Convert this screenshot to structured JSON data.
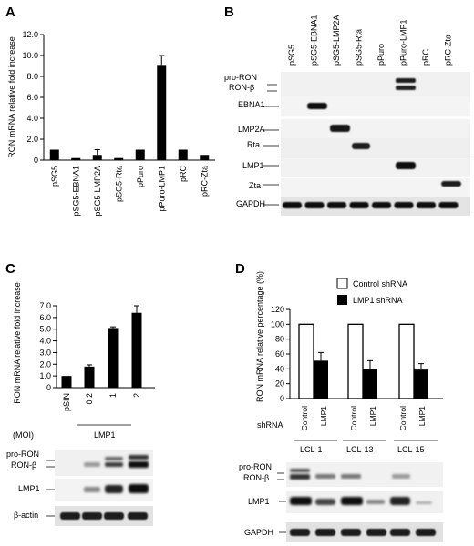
{
  "panels": {
    "A": {
      "label": "A"
    },
    "B": {
      "label": "B",
      "lanes": [
        "pSG5",
        "pSG5-EBNA1",
        "pSG5-LMP2A",
        "pSG5-Rta",
        "pPuro",
        "pPuro-LMP1",
        "pRC",
        "pRC-Zta"
      ],
      "rows": [
        "pro-RON",
        "RON-β",
        "EBNA1",
        "LMP2A",
        "Rta",
        "LMP1",
        "Zta",
        "GAPDH"
      ]
    },
    "C": {
      "label": "C",
      "moi_label": "(MOI)",
      "group_label": "LMP1",
      "rows": [
        "pro-RON",
        "RON-β",
        "LMP1",
        "β-actin"
      ]
    },
    "D": {
      "label": "D",
      "shrna_label": "shRNA",
      "legend": [
        "Control shRNA",
        "LMP1 shRNA"
      ],
      "lane_labels": [
        "Control",
        "LMP1",
        "Control",
        "LMP1",
        "Control",
        "LMP1"
      ],
      "cell_lines": [
        "LCL-1",
        "LCL-13",
        "LCL-15"
      ],
      "rows": [
        "pro-RON",
        "RON-β",
        "LMP1",
        "GAPDH"
      ]
    }
  },
  "chart_data": [
    {
      "panel": "A",
      "type": "bar",
      "ylabel": "RON mRNA relative fold increase",
      "ylim": [
        0,
        12
      ],
      "yticks": [
        "0",
        "2.0",
        "4.0",
        "6.0",
        "8.0",
        "10.0",
        "12.0"
      ],
      "categories": [
        "pSG5",
        "pSG5-EBNA1",
        "pSG5-LMP2A",
        "pSG5-Rta",
        "pPuro",
        "pPuro-LMP1",
        "pRC",
        "pRC-Zta"
      ],
      "values": [
        1.0,
        0.2,
        0.5,
        0.2,
        1.0,
        9.1,
        1.0,
        0.5
      ],
      "errors": [
        0,
        0,
        0.5,
        0,
        0,
        0.9,
        0,
        0
      ]
    },
    {
      "panel": "C",
      "type": "bar",
      "ylabel": "RON mRNA relative fold increase",
      "ylim": [
        0,
        7
      ],
      "yticks": [
        "0",
        "1.0",
        "2.0",
        "3.0",
        "4.0",
        "5.0",
        "6.0",
        "7.0"
      ],
      "categories": [
        "pSIN",
        "0.2",
        "1",
        "2"
      ],
      "values": [
        1.0,
        1.8,
        5.1,
        6.4
      ],
      "errors": [
        0,
        0.15,
        0.1,
        0.6
      ]
    },
    {
      "panel": "D",
      "type": "bar",
      "ylabel": "RON mRNA relative percentage (%)",
      "ylim": [
        0,
        120
      ],
      "yticks": [
        "0",
        "20",
        "40",
        "60",
        "80",
        "100",
        "120"
      ],
      "categories": [
        "LCL-1",
        "LCL-13",
        "LCL-15"
      ],
      "series": [
        {
          "name": "Control shRNA",
          "values": [
            100,
            100,
            100
          ],
          "errors": [
            0,
            0,
            0
          ]
        },
        {
          "name": "LMP1 shRNA",
          "values": [
            51,
            40,
            39
          ],
          "errors": [
            11,
            11,
            8
          ]
        }
      ]
    }
  ]
}
